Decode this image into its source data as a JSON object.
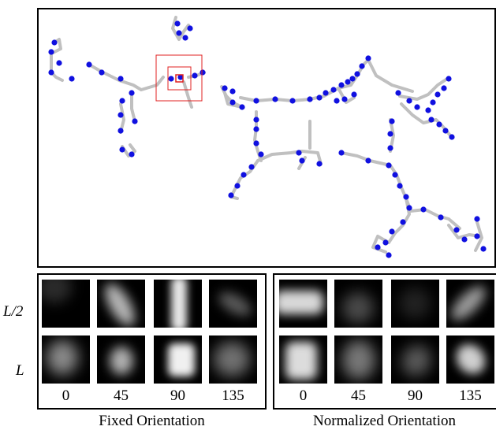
{
  "top_panel": {
    "node_color": "#1010e0",
    "edge_color": "#c0c0c0",
    "highlight_color": "#e02020"
  },
  "rows": {
    "half": "L/2",
    "full": "L"
  },
  "orientation_ticks": [
    "0",
    "45",
    "90",
    "135"
  ],
  "panels": {
    "fixed": {
      "caption": "Fixed Orientation"
    },
    "normalized": {
      "caption": "Normalized Orientation"
    }
  }
}
